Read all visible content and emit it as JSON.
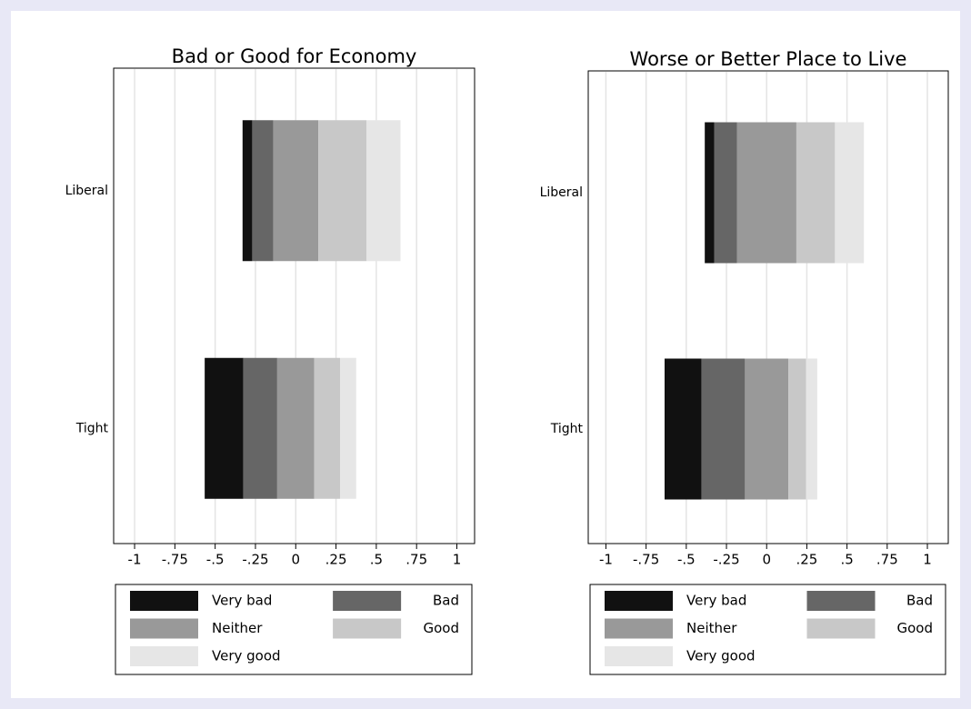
{
  "chart_data": [
    {
      "type": "bar",
      "title": "Bad or Good for Economy",
      "categories": [
        "Liberal",
        "Tight"
      ],
      "series": [
        {
          "name": "Very bad",
          "color": "#111111",
          "values": [
            0.06,
            0.24
          ]
        },
        {
          "name": "Bad",
          "color": "#666666",
          "values": [
            0.13,
            0.21
          ]
        },
        {
          "name": "Neither",
          "color": "#999999",
          "values": [
            0.28,
            0.23
          ]
        },
        {
          "name": "Good",
          "color": "#c8c8c8",
          "values": [
            0.3,
            0.16
          ]
        },
        {
          "name": "Very good",
          "color": "#e6e6e6",
          "values": [
            0.21,
            0.1
          ]
        }
      ],
      "xlim": [
        -1.13,
        1.11
      ],
      "xticks": [
        -1,
        {
          "value": -0.75,
          "label": "-.75"
        },
        {
          "value": -0.5,
          "label": "-.5"
        },
        {
          "value": -0.25,
          "label": "-.25"
        },
        0,
        {
          "value": 0.25,
          "label": ".25"
        },
        {
          "value": 0.5,
          "label": ".5"
        },
        {
          "value": 0.75,
          "label": ".75"
        },
        1
      ],
      "grid": true
    },
    {
      "type": "bar",
      "title": "Worse or Better Place to Live",
      "categories": [
        "Liberal",
        "Tight"
      ],
      "series": [
        {
          "name": "Very bad",
          "color": "#111111",
          "values": [
            0.06,
            0.23
          ]
        },
        {
          "name": "Bad",
          "color": "#666666",
          "values": [
            0.14,
            0.27
          ]
        },
        {
          "name": "Neither",
          "color": "#999999",
          "values": [
            0.37,
            0.27
          ]
        },
        {
          "name": "Good",
          "color": "#c8c8c8",
          "values": [
            0.24,
            0.11
          ]
        },
        {
          "name": "Very good",
          "color": "#e6e6e6",
          "values": [
            0.18,
            0.07
          ]
        }
      ],
      "xlim": [
        -1.11,
        1.13
      ],
      "xticks": [
        -1,
        {
          "value": -0.75,
          "label": "-.75"
        },
        {
          "value": -0.5,
          "label": "-.5"
        },
        {
          "value": -0.25,
          "label": "-.25"
        },
        0,
        {
          "value": 0.25,
          "label": ".25"
        },
        {
          "value": 0.5,
          "label": ".5"
        },
        {
          "value": 0.75,
          "label": ".75"
        },
        1
      ],
      "grid": true
    }
  ]
}
